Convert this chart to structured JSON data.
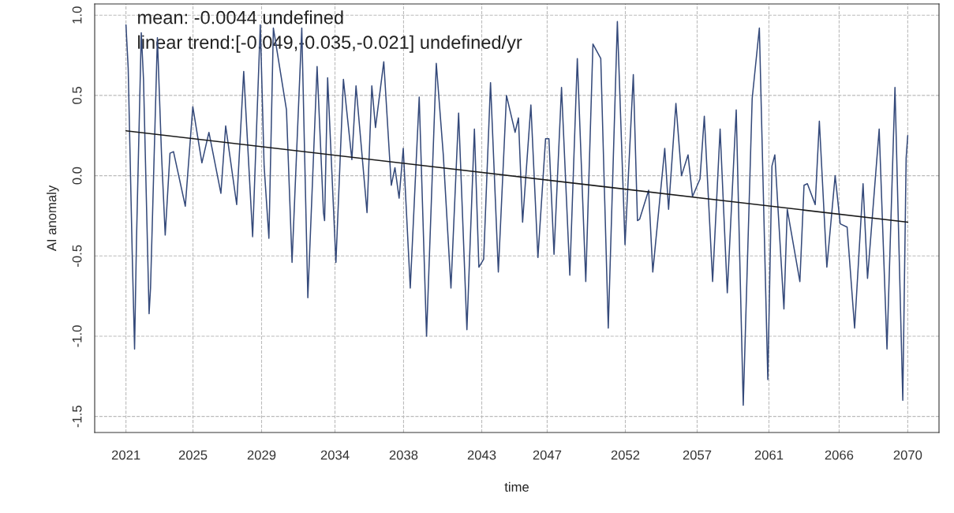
{
  "chart_data": {
    "type": "line",
    "xlabel": "time",
    "ylabel": "AI anomaly",
    "annotations": [
      "mean: -0.0044 undefined",
      "linear trend:[-0.049,-0.035,-0.021] undefined/yr"
    ],
    "xlim": [
      2019.04,
      2071.96
    ],
    "ylim": [
      -1.6,
      1.07
    ],
    "xticks": [
      2021,
      {
        "value": 2025.2,
        "label": "2025"
      },
      {
        "value": 2029.5,
        "label": "2029"
      },
      {
        "value": 2034.1,
        "label": "2034"
      },
      {
        "value": 2038.4,
        "label": "2038"
      },
      {
        "value": 2043.3,
        "label": "2043"
      },
      {
        "value": 2047.4,
        "label": "2047"
      },
      {
        "value": 2052.3,
        "label": "2052"
      },
      {
        "value": 2056.8,
        "label": "2057"
      },
      {
        "value": 2061.3,
        "label": "2061"
      },
      {
        "value": 2065.7,
        "label": "2066"
      },
      2070
    ],
    "yticks": [
      {
        "value": -1.5,
        "label": "-1.5"
      },
      {
        "value": -1.0,
        "label": "-1.0"
      },
      {
        "value": -0.5,
        "label": "-0.5"
      },
      {
        "value": 0,
        "label": "0.0"
      },
      {
        "value": 0.5,
        "label": "0.5"
      },
      {
        "value": 1.0,
        "label": "1.0"
      }
    ],
    "grid": true,
    "marker": "none",
    "line_style": "solid",
    "series": [
      {
        "color": "#34497a",
        "x": [
          2021.0,
          2021.14,
          2021.4,
          2021.54,
          2021.66,
          2021.96,
          2022.1,
          2022.45,
          2022.54,
          2022.97,
          2023.23,
          2023.46,
          2023.76,
          2023.98,
          2024.72,
          2025.19,
          2025.76,
          2026.2,
          2026.95,
          2027.25,
          2027.94,
          2028.38,
          2028.94,
          2029.42,
          2029.66,
          2029.96,
          2030.24,
          2031.06,
          2031.41,
          2032.02,
          2032.4,
          2032.98,
          2033.38,
          2033.45,
          2033.64,
          2034.16,
          2034.63,
          2035.16,
          2035.42,
          2036.11,
          2036.41,
          2036.64,
          2037.16,
          2037.63,
          2037.86,
          2038.12,
          2038.38,
          2038.82,
          2039.38,
          2039.84,
          2040.45,
          2040.89,
          2041.37,
          2041.85,
          2042.37,
          2042.84,
          2043.12,
          2043.42,
          2043.85,
          2044.34,
          2044.85,
          2045.39,
          2045.6,
          2045.86,
          2046.38,
          2046.82,
          2047.3,
          2047.51,
          2047.83,
          2048.3,
          2048.82,
          2049.29,
          2049.82,
          2050.27,
          2050.76,
          2051.23,
          2051.8,
          2052.28,
          2052.8,
          2053.06,
          2053.2,
          2053.76,
          2054.02,
          2054.77,
          2055.01,
          2055.47,
          2055.82,
          2056.23,
          2056.51,
          2056.98,
          2057.25,
          2057.77,
          2058.24,
          2058.69,
          2059.25,
          2059.69,
          2060.25,
          2060.7,
          2061.23,
          2061.49,
          2061.67,
          2062.24,
          2062.45,
          2063.24,
          2063.5,
          2063.71,
          2064.2,
          2064.46,
          2064.93,
          2065.45,
          2065.77,
          2066.2,
          2066.67,
          2067.2,
          2067.48,
          2068.21,
          2068.7,
          2069.2,
          2069.69,
          2069.9,
          2070.0
        ],
        "values": [
          0.94,
          0.67,
          -0.52,
          -1.08,
          -0.4,
          0.89,
          0.6,
          -0.86,
          -0.7,
          0.86,
          0.13,
          -0.37,
          0.14,
          0.15,
          -0.19,
          0.43,
          0.08,
          0.27,
          -0.11,
          0.31,
          -0.18,
          0.65,
          -0.38,
          0.94,
          0.06,
          -0.39,
          0.92,
          0.41,
          -0.54,
          0.92,
          -0.76,
          0.68,
          -0.23,
          -0.28,
          0.61,
          -0.54,
          0.6,
          0.1,
          0.56,
          -0.23,
          0.56,
          0.3,
          0.71,
          -0.06,
          0.05,
          -0.14,
          0.17,
          -0.7,
          0.49,
          -1.0,
          0.7,
          0.13,
          -0.7,
          0.39,
          -0.96,
          0.29,
          -0.57,
          -0.52,
          0.58,
          -0.6,
          0.5,
          0.27,
          0.36,
          -0.29,
          0.44,
          -0.51,
          0.23,
          0.23,
          -0.49,
          0.55,
          -0.62,
          0.73,
          -0.66,
          0.82,
          0.73,
          -0.95,
          0.96,
          -0.43,
          0.63,
          -0.28,
          -0.27,
          -0.09,
          -0.6,
          0.17,
          -0.21,
          0.45,
          0.0,
          0.13,
          -0.13,
          -0.02,
          0.37,
          -0.66,
          0.29,
          -0.73,
          0.41,
          -1.43,
          0.48,
          0.92,
          -1.27,
          0.06,
          0.13,
          -0.83,
          -0.21,
          -0.66,
          -0.06,
          -0.05,
          -0.18,
          0.34,
          -0.57,
          0.0,
          -0.3,
          -0.32,
          -0.95,
          -0.05,
          -0.64,
          0.29,
          -1.08,
          0.55,
          -1.4,
          0.11,
          0.25
        ]
      },
      {
        "type": "line",
        "color": "#1a1a1a",
        "x": [
          2021,
          2070
        ],
        "values": [
          0.28,
          -0.29
        ]
      }
    ]
  }
}
